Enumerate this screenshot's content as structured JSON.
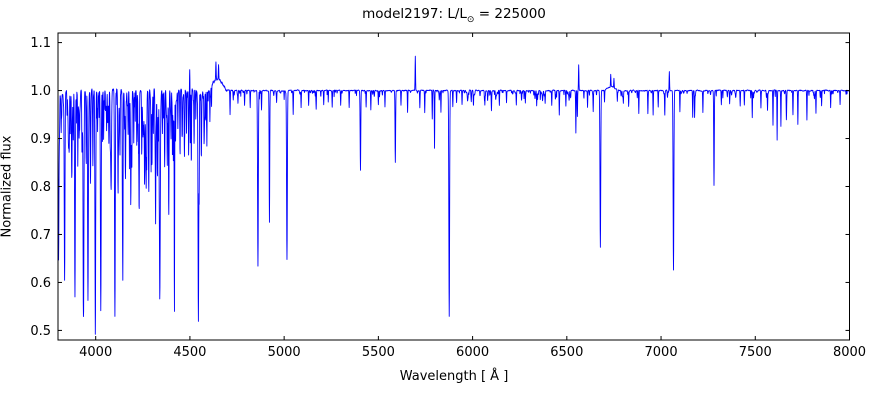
{
  "figure": {
    "title": {
      "prefix": "model2197: L/L",
      "sub": "⊙",
      "suffix": " = 225000"
    }
  },
  "axes": {
    "xlabel": "Wavelength [ Å ]",
    "ylabel": "Normalized flux",
    "frame_color": "#000000",
    "tick_color": "#000000"
  },
  "chart_data": {
    "type": "line",
    "title": "model2197: L/L⊙ = 225000",
    "xlabel": "Wavelength [ Å ]",
    "ylabel": "Normalized flux",
    "xlim": [
      3800,
      8000
    ],
    "ylim": [
      0.48,
      1.12
    ],
    "x_ticks": [
      4000,
      4500,
      5000,
      5500,
      6000,
      6500,
      7000,
      7500,
      8000
    ],
    "y_ticks": [
      0.5,
      0.6,
      0.7,
      0.8,
      0.9,
      1.0,
      1.1
    ],
    "grid": false,
    "legend": null,
    "line_color": "#0000ff",
    "baseline_flux": 1.0,
    "absorption_lines": [
      [
        3803,
        0.645
      ],
      [
        3817,
        0.93
      ],
      [
        3835,
        0.605
      ],
      [
        3848,
        0.95
      ],
      [
        3860,
        0.92
      ],
      [
        3872,
        0.885
      ],
      [
        3881,
        0.91
      ],
      [
        3890,
        0.58
      ],
      [
        3905,
        0.93
      ],
      [
        3914,
        0.95
      ],
      [
        3927,
        0.91
      ],
      [
        3935,
        0.575
      ],
      [
        3950,
        0.92
      ],
      [
        3959,
        0.565
      ],
      [
        3972,
        0.9
      ],
      [
        3984,
        0.93
      ],
      [
        3998,
        0.59
      ],
      [
        4010,
        0.92
      ],
      [
        4027,
        0.545
      ],
      [
        4042,
        0.9
      ],
      [
        4058,
        0.92
      ],
      [
        4070,
        0.89
      ],
      [
        4083,
        0.86
      ],
      [
        4102,
        0.555
      ],
      [
        4118,
        0.87
      ],
      [
        4129,
        0.89
      ],
      [
        4144,
        0.84
      ],
      [
        4158,
        0.82
      ],
      [
        4172,
        0.91
      ],
      [
        4188,
        0.93
      ],
      [
        4202,
        0.9
      ],
      [
        4218,
        0.92
      ],
      [
        4230,
        0.79
      ],
      [
        4244,
        0.91
      ],
      [
        4254,
        0.92
      ],
      [
        4268,
        0.87
      ],
      [
        4280,
        0.9
      ],
      [
        4294,
        0.89
      ],
      [
        4306,
        0.91
      ],
      [
        4318,
        0.87
      ],
      [
        4326,
        0.9
      ],
      [
        4340,
        0.578
      ],
      [
        4354,
        0.91
      ],
      [
        4366,
        0.84
      ],
      [
        4380,
        0.86
      ],
      [
        4388,
        0.79
      ],
      [
        4400,
        0.91
      ],
      [
        4412,
        0.87
      ],
      [
        4418,
        0.8
      ],
      [
        4424,
        0.9
      ],
      [
        4436,
        0.92
      ],
      [
        4448,
        0.91
      ],
      [
        4460,
        0.93
      ],
      [
        4471,
        0.865
      ],
      [
        4482,
        0.91
      ],
      [
        4508,
        0.92
      ],
      [
        4522,
        0.9
      ],
      [
        4545,
        0.54
      ],
      [
        4560,
        0.93
      ],
      [
        4575,
        0.9
      ],
      [
        4590,
        0.88
      ],
      [
        4606,
        0.93
      ],
      [
        4713,
        0.95
      ],
      [
        4730,
        0.98
      ],
      [
        4755,
        0.975
      ],
      [
        4790,
        0.97
      ],
      [
        4820,
        0.975
      ],
      [
        4861,
        0.643
      ],
      [
        4880,
        0.96
      ],
      [
        4922,
        0.725
      ],
      [
        4960,
        0.975
      ],
      [
        5015,
        0.648
      ],
      [
        5048,
        0.95
      ],
      [
        5090,
        0.965
      ],
      [
        5130,
        0.97
      ],
      [
        5170,
        0.96
      ],
      [
        5210,
        0.97
      ],
      [
        5255,
        0.965
      ],
      [
        5300,
        0.97
      ],
      [
        5345,
        0.965
      ],
      [
        5405,
        0.835
      ],
      [
        5435,
        0.965
      ],
      [
        5460,
        0.96
      ],
      [
        5500,
        0.97
      ],
      [
        5535,
        0.965
      ],
      [
        5590,
        0.85
      ],
      [
        5620,
        0.97
      ],
      [
        5655,
        0.955
      ],
      [
        5720,
        0.965
      ],
      [
        5746,
        0.955
      ],
      [
        5786,
        0.94
      ],
      [
        5798,
        0.88
      ],
      [
        5832,
        0.955
      ],
      [
        5876,
        0.532
      ],
      [
        5895,
        0.965
      ],
      [
        5915,
        0.975
      ],
      [
        5944,
        0.97
      ],
      [
        6004,
        0.975
      ],
      [
        6065,
        0.97
      ],
      [
        6100,
        0.975
      ],
      [
        6142,
        0.968
      ],
      [
        6180,
        0.975
      ],
      [
        6232,
        0.97
      ],
      [
        6280,
        0.974
      ],
      [
        6340,
        0.968
      ],
      [
        6385,
        0.973
      ],
      [
        6420,
        0.97
      ],
      [
        6460,
        0.958
      ],
      [
        6495,
        0.968
      ],
      [
        6548,
        0.912
      ],
      [
        6556,
        0.945
      ],
      [
        6610,
        0.965
      ],
      [
        6640,
        0.955
      ],
      [
        6678,
        0.672
      ],
      [
        6700,
        0.975
      ],
      [
        6768,
        0.975
      ],
      [
        6800,
        0.975
      ],
      [
        6828,
        0.97
      ],
      [
        6882,
        0.952
      ],
      [
        6930,
        0.955
      ],
      [
        6958,
        0.95
      ],
      [
        6985,
        0.965
      ],
      [
        7020,
        0.965
      ],
      [
        7066,
        0.625
      ],
      [
        7100,
        0.955
      ],
      [
        7168,
        0.945
      ],
      [
        7178,
        0.95
      ],
      [
        7222,
        0.955
      ],
      [
        7281,
        0.802
      ],
      [
        7320,
        0.97
      ],
      [
        7364,
        0.972
      ],
      [
        7420,
        0.968
      ],
      [
        7442,
        0.97
      ],
      [
        7484,
        0.944
      ],
      [
        7530,
        0.965
      ],
      [
        7565,
        0.96
      ],
      [
        7594,
        0.928
      ],
      [
        7616,
        0.9
      ],
      [
        7636,
        0.93
      ],
      [
        7665,
        0.944
      ],
      [
        7700,
        0.95
      ],
      [
        7726,
        0.93
      ],
      [
        7774,
        0.938
      ],
      [
        7822,
        0.953
      ],
      [
        7852,
        0.968
      ],
      [
        7900,
        0.965
      ],
      [
        7950,
        0.97
      ]
    ],
    "emission_lines": [
      [
        4473,
        1.048
      ],
      [
        4499,
        1.043
      ],
      [
        4638,
        1.036
      ],
      [
        4652,
        1.032
      ],
      [
        5696,
        1.072
      ],
      [
        6563,
        1.054
      ],
      [
        6733,
        1.027
      ],
      [
        6750,
        1.02
      ],
      [
        7044,
        1.04
      ]
    ],
    "emission_bands": [
      [
        4645,
        0.024,
        24
      ],
      [
        6735,
        0.008,
        18
      ]
    ],
    "line_forest": [
      {
        "range": [
          3802,
          4615
        ],
        "count": 240,
        "depth": [
          0.008,
          0.12
        ],
        "seed": 11
      },
      {
        "range": [
          4700,
          5880
        ],
        "count": 55,
        "depth": [
          0.004,
          0.02
        ],
        "seed": 12
      },
      {
        "range": [
          5900,
          6520
        ],
        "count": 70,
        "depth": [
          0.004,
          0.022
        ],
        "seed": 13
      },
      {
        "range": [
          6520,
          7990
        ],
        "count": 60,
        "depth": [
          0.004,
          0.02
        ],
        "seed": 14
      }
    ],
    "noise": [
      {
        "range": [
          3800,
          4700
        ],
        "amp": 0.005
      },
      {
        "range": [
          4700,
          8000
        ],
        "amp": 0.0016
      }
    ],
    "noise_seed": 42
  }
}
